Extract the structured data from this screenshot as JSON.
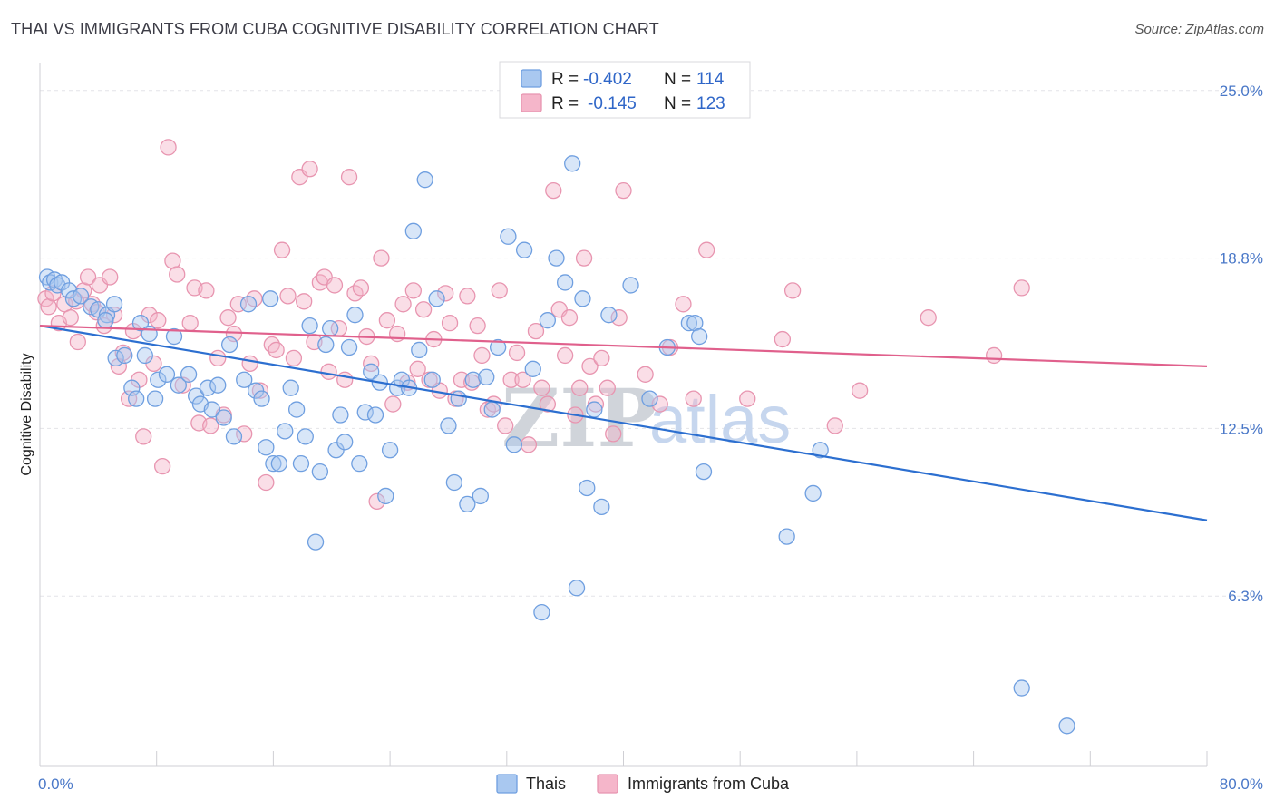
{
  "title": "THAI VS IMMIGRANTS FROM CUBA COGNITIVE DISABILITY CORRELATION CHART",
  "source": "Source: ZipAtlas.com",
  "watermark": {
    "zip": "ZIP",
    "atlas": "atlas"
  },
  "legend": {
    "rows": [
      {
        "r_label": "R = ",
        "r_value": "-0.402",
        "n_label": "N = ",
        "n_value": "114"
      },
      {
        "r_label": "R = ",
        "r_value": "-0.145",
        "n_label": "N = ",
        "n_value": "123"
      }
    ]
  },
  "colors": {
    "thai_fill": "#a9c8f0",
    "thai_stroke": "#6f9fe0",
    "thai_line": "#2c6fd0",
    "cuba_fill": "#f5b6ca",
    "cuba_stroke": "#e895b0",
    "cuba_line": "#e0608c",
    "grid": "#e4e4e8",
    "axis": "#cfcfd4"
  },
  "chart_data": {
    "type": "scatter",
    "xlabel": "",
    "ylabel": "Cognitive Disability",
    "xlim": [
      0,
      80
    ],
    "ylim": [
      0,
      26
    ],
    "x_tick_labels": [
      {
        "value": 0,
        "label": "0.0%"
      },
      {
        "value": 80,
        "label": "80.0%"
      }
    ],
    "y_tick_labels": [
      {
        "value": 6.3,
        "label": "6.3%"
      },
      {
        "value": 12.5,
        "label": "12.5%"
      },
      {
        "value": 18.8,
        "label": "18.8%"
      },
      {
        "value": 25.0,
        "label": "25.0%"
      }
    ],
    "grid": true,
    "legend_position": "top-center",
    "series": [
      {
        "name": "Thais",
        "r": -0.402,
        "n": 114,
        "trend": {
          "x": [
            0,
            80
          ],
          "y": [
            16.3,
            9.1
          ]
        },
        "points": [
          [
            0.5,
            18.1
          ],
          [
            0.7,
            17.9
          ],
          [
            1.0,
            18.0
          ],
          [
            1.2,
            17.8
          ],
          [
            1.5,
            17.9
          ],
          [
            2.0,
            17.6
          ],
          [
            2.3,
            17.3
          ],
          [
            2.8,
            17.4
          ],
          [
            3.5,
            17.0
          ],
          [
            4.0,
            16.9
          ],
          [
            4.6,
            16.7
          ],
          [
            5.1,
            17.1
          ],
          [
            4.5,
            16.5
          ],
          [
            5.2,
            15.1
          ],
          [
            5.8,
            15.2
          ],
          [
            6.3,
            14.0
          ],
          [
            6.6,
            13.6
          ],
          [
            6.9,
            16.4
          ],
          [
            7.2,
            15.2
          ],
          [
            7.5,
            16.0
          ],
          [
            7.9,
            13.6
          ],
          [
            8.1,
            14.3
          ],
          [
            8.7,
            14.5
          ],
          [
            9.2,
            15.9
          ],
          [
            9.5,
            14.1
          ],
          [
            10.2,
            14.5
          ],
          [
            10.7,
            13.7
          ],
          [
            11.0,
            13.4
          ],
          [
            11.5,
            14.0
          ],
          [
            11.8,
            13.2
          ],
          [
            12.2,
            14.1
          ],
          [
            12.6,
            12.9
          ],
          [
            13.0,
            15.6
          ],
          [
            13.3,
            12.2
          ],
          [
            14.0,
            14.3
          ],
          [
            14.3,
            17.1
          ],
          [
            14.8,
            13.9
          ],
          [
            15.2,
            13.6
          ],
          [
            15.5,
            11.8
          ],
          [
            15.8,
            17.3
          ],
          [
            16.0,
            11.2
          ],
          [
            16.4,
            11.2
          ],
          [
            16.8,
            12.4
          ],
          [
            17.2,
            14.0
          ],
          [
            17.6,
            13.2
          ],
          [
            17.9,
            11.2
          ],
          [
            18.2,
            12.2
          ],
          [
            18.5,
            16.3
          ],
          [
            18.9,
            8.3
          ],
          [
            19.2,
            10.9
          ],
          [
            19.6,
            15.6
          ],
          [
            19.9,
            16.2
          ],
          [
            20.3,
            11.7
          ],
          [
            20.6,
            13.0
          ],
          [
            20.9,
            12.0
          ],
          [
            21.2,
            15.5
          ],
          [
            21.6,
            16.7
          ],
          [
            21.9,
            11.2
          ],
          [
            22.3,
            13.1
          ],
          [
            22.7,
            14.6
          ],
          [
            23.0,
            13.0
          ],
          [
            23.3,
            14.2
          ],
          [
            23.7,
            10.0
          ],
          [
            24.0,
            11.7
          ],
          [
            24.5,
            14.0
          ],
          [
            24.8,
            14.3
          ],
          [
            25.3,
            14.0
          ],
          [
            25.6,
            19.8
          ],
          [
            26.0,
            15.4
          ],
          [
            26.4,
            21.7
          ],
          [
            26.9,
            14.3
          ],
          [
            27.2,
            17.3
          ],
          [
            28.0,
            12.6
          ],
          [
            28.4,
            10.5
          ],
          [
            28.7,
            13.6
          ],
          [
            29.3,
            9.7
          ],
          [
            29.7,
            14.3
          ],
          [
            30.2,
            10.0
          ],
          [
            30.6,
            14.4
          ],
          [
            31.0,
            13.2
          ],
          [
            31.4,
            15.5
          ],
          [
            32.1,
            19.6
          ],
          [
            32.5,
            11.9
          ],
          [
            33.2,
            19.1
          ],
          [
            33.8,
            14.7
          ],
          [
            34.4,
            5.7
          ],
          [
            34.8,
            16.5
          ],
          [
            35.4,
            18.8
          ],
          [
            36.0,
            17.9
          ],
          [
            36.5,
            22.3
          ],
          [
            36.8,
            6.6
          ],
          [
            37.2,
            17.3
          ],
          [
            37.5,
            10.3
          ],
          [
            38.0,
            13.2
          ],
          [
            38.5,
            9.6
          ],
          [
            39.0,
            16.7
          ],
          [
            40.5,
            17.8
          ],
          [
            41.8,
            13.6
          ],
          [
            43.0,
            15.5
          ],
          [
            44.5,
            16.4
          ],
          [
            44.9,
            16.4
          ],
          [
            45.2,
            15.9
          ],
          [
            45.5,
            10.9
          ],
          [
            51.2,
            8.5
          ],
          [
            53.0,
            10.1
          ],
          [
            53.5,
            11.7
          ],
          [
            67.3,
            2.9
          ],
          [
            70.4,
            1.5
          ]
        ]
      },
      {
        "name": "Immigrants from Cuba",
        "r": -0.145,
        "n": 123,
        "trend": {
          "x": [
            0,
            80
          ],
          "y": [
            16.3,
            14.8
          ]
        },
        "points": [
          [
            0.4,
            17.3
          ],
          [
            0.6,
            17.0
          ],
          [
            0.9,
            17.5
          ],
          [
            1.3,
            16.4
          ],
          [
            1.7,
            17.1
          ],
          [
            2.1,
            16.6
          ],
          [
            2.5,
            17.2
          ],
          [
            2.6,
            15.7
          ],
          [
            3.0,
            17.6
          ],
          [
            3.3,
            18.1
          ],
          [
            3.6,
            17.1
          ],
          [
            3.9,
            16.8
          ],
          [
            4.1,
            17.8
          ],
          [
            4.4,
            16.3
          ],
          [
            4.8,
            18.1
          ],
          [
            5.1,
            16.7
          ],
          [
            5.4,
            14.8
          ],
          [
            5.7,
            15.3
          ],
          [
            6.1,
            13.6
          ],
          [
            6.4,
            16.1
          ],
          [
            6.8,
            14.3
          ],
          [
            7.1,
            12.2
          ],
          [
            7.5,
            16.7
          ],
          [
            7.8,
            14.9
          ],
          [
            8.1,
            16.5
          ],
          [
            8.4,
            11.1
          ],
          [
            8.8,
            22.9
          ],
          [
            9.1,
            18.7
          ],
          [
            9.4,
            18.2
          ],
          [
            9.8,
            14.1
          ],
          [
            10.3,
            16.4
          ],
          [
            10.6,
            17.7
          ],
          [
            10.9,
            12.7
          ],
          [
            11.4,
            17.6
          ],
          [
            11.7,
            12.6
          ],
          [
            12.2,
            15.1
          ],
          [
            12.6,
            13.0
          ],
          [
            12.9,
            16.6
          ],
          [
            13.3,
            16.0
          ],
          [
            13.6,
            17.1
          ],
          [
            14.0,
            12.3
          ],
          [
            14.4,
            14.9
          ],
          [
            14.7,
            17.3
          ],
          [
            15.1,
            13.9
          ],
          [
            15.5,
            10.5
          ],
          [
            15.9,
            15.6
          ],
          [
            16.2,
            15.4
          ],
          [
            16.6,
            19.1
          ],
          [
            17.0,
            17.4
          ],
          [
            17.4,
            15.1
          ],
          [
            17.8,
            21.8
          ],
          [
            18.1,
            17.2
          ],
          [
            18.5,
            22.1
          ],
          [
            18.8,
            15.7
          ],
          [
            19.2,
            17.9
          ],
          [
            19.5,
            18.1
          ],
          [
            19.8,
            14.6
          ],
          [
            20.2,
            17.8
          ],
          [
            20.5,
            16.2
          ],
          [
            20.9,
            14.3
          ],
          [
            21.2,
            21.8
          ],
          [
            21.6,
            17.5
          ],
          [
            22.0,
            17.7
          ],
          [
            22.4,
            15.9
          ],
          [
            22.7,
            14.9
          ],
          [
            23.1,
            9.8
          ],
          [
            23.4,
            18.8
          ],
          [
            23.8,
            16.5
          ],
          [
            24.2,
            13.4
          ],
          [
            24.5,
            16.0
          ],
          [
            24.9,
            17.1
          ],
          [
            25.2,
            14.2
          ],
          [
            25.6,
            17.6
          ],
          [
            25.9,
            14.7
          ],
          [
            26.3,
            16.9
          ],
          [
            26.7,
            14.3
          ],
          [
            27.0,
            15.8
          ],
          [
            27.4,
            13.9
          ],
          [
            27.8,
            17.5
          ],
          [
            28.1,
            16.4
          ],
          [
            28.5,
            13.6
          ],
          [
            28.9,
            14.3
          ],
          [
            29.3,
            17.4
          ],
          [
            29.6,
            14.2
          ],
          [
            30.0,
            16.3
          ],
          [
            30.3,
            15.2
          ],
          [
            30.7,
            13.2
          ],
          [
            31.1,
            13.4
          ],
          [
            31.5,
            17.6
          ],
          [
            31.9,
            12.6
          ],
          [
            32.3,
            14.3
          ],
          [
            32.7,
            15.3
          ],
          [
            33.1,
            14.3
          ],
          [
            33.5,
            11.9
          ],
          [
            34.0,
            16.1
          ],
          [
            34.4,
            14.0
          ],
          [
            34.8,
            13.4
          ],
          [
            35.2,
            21.3
          ],
          [
            35.6,
            16.9
          ],
          [
            36.0,
            15.2
          ],
          [
            36.3,
            16.6
          ],
          [
            36.7,
            13.0
          ],
          [
            37.0,
            14.0
          ],
          [
            37.3,
            18.8
          ],
          [
            37.7,
            14.8
          ],
          [
            38.1,
            13.4
          ],
          [
            38.5,
            15.1
          ],
          [
            38.9,
            14.0
          ],
          [
            39.3,
            12.3
          ],
          [
            39.7,
            16.6
          ],
          [
            40.0,
            21.3
          ],
          [
            41.5,
            14.5
          ],
          [
            42.5,
            13.4
          ],
          [
            43.2,
            15.5
          ],
          [
            44.1,
            17.1
          ],
          [
            44.8,
            13.6
          ],
          [
            45.7,
            19.1
          ],
          [
            48.5,
            13.6
          ],
          [
            50.9,
            15.8
          ],
          [
            51.6,
            17.6
          ],
          [
            54.5,
            12.6
          ],
          [
            56.2,
            13.9
          ],
          [
            60.9,
            16.6
          ],
          [
            65.4,
            15.2
          ],
          [
            67.3,
            17.7
          ]
        ]
      }
    ]
  },
  "bottom_legend": [
    {
      "label": "Thais"
    },
    {
      "label": "Immigrants from Cuba"
    }
  ]
}
